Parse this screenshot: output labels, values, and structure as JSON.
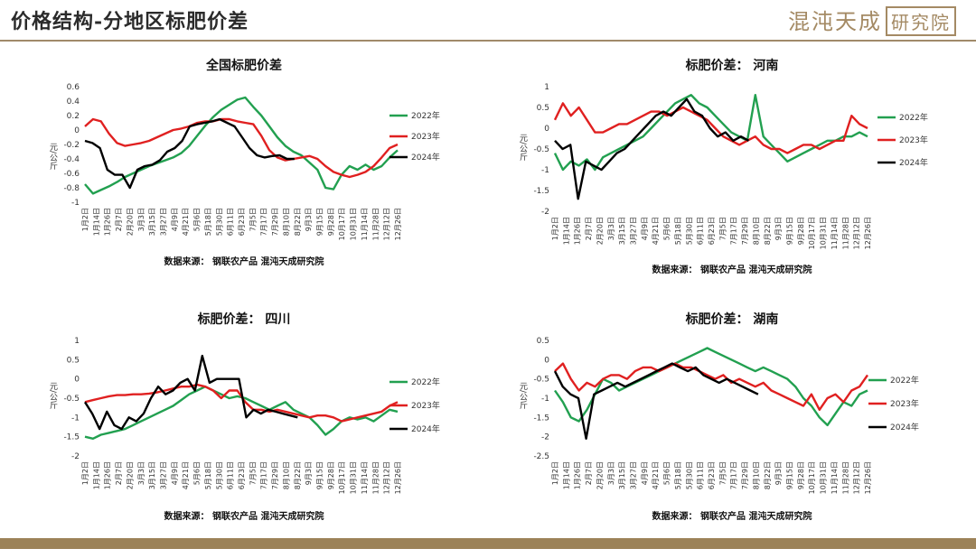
{
  "header": {
    "title": "价格结构-分地区标肥价差",
    "logo_text": "混沌天成",
    "logo_box": "研究院",
    "accent_color": "#a48a64"
  },
  "colors": {
    "s2022": "#22a050",
    "s2023": "#e02020",
    "s2024": "#000000"
  },
  "chart_data": [
    {
      "type": "line",
      "title": "全国标肥价差",
      "ylabel": "元/公斤",
      "source": "数据来源： 钢联农产品 混沌天成研究院",
      "ylim": [
        -1,
        0.6
      ],
      "yticks": [
        0.6,
        0.4,
        0.2,
        0,
        -0.2,
        -0.4,
        -0.6,
        -0.8,
        -1
      ],
      "x_labels": [
        "1月2日",
        "1月14日",
        "1月26日",
        "2月7日",
        "2月20日",
        "3月3日",
        "3月15日",
        "3月27日",
        "4月9日",
        "4月21日",
        "5月6日",
        "5月18日",
        "5月30日",
        "6月11日",
        "6月23日",
        "7月5日",
        "7月17日",
        "7月29日",
        "8月10日",
        "8月22日",
        "9月3日",
        "9月15日",
        "9月28日",
        "10月17日",
        "10月31日",
        "11月14日",
        "11月28日",
        "12月12日",
        "12月26日"
      ],
      "series": [
        {
          "name": "2022年",
          "key": "s2022",
          "span": 1.0,
          "values": [
            -0.75,
            -0.88,
            -0.83,
            -0.78,
            -0.72,
            -0.65,
            -0.6,
            -0.55,
            -0.5,
            -0.46,
            -0.42,
            -0.38,
            -0.32,
            -0.22,
            -0.08,
            0.06,
            0.18,
            0.28,
            0.35,
            0.42,
            0.45,
            0.32,
            0.2,
            0.05,
            -0.1,
            -0.22,
            -0.3,
            -0.35,
            -0.45,
            -0.55,
            -0.8,
            -0.82,
            -0.62,
            -0.5,
            -0.55,
            -0.48,
            -0.55,
            -0.5,
            -0.38,
            -0.28
          ]
        },
        {
          "name": "2023年",
          "key": "s2023",
          "span": 1.0,
          "values": [
            0.05,
            0.15,
            0.12,
            -0.05,
            -0.18,
            -0.22,
            -0.2,
            -0.18,
            -0.15,
            -0.1,
            -0.05,
            0.0,
            0.02,
            0.05,
            0.1,
            0.12,
            0.12,
            0.15,
            0.15,
            0.12,
            0.1,
            0.08,
            -0.08,
            -0.28,
            -0.38,
            -0.42,
            -0.4,
            -0.38,
            -0.36,
            -0.4,
            -0.5,
            -0.58,
            -0.62,
            -0.65,
            -0.62,
            -0.58,
            -0.5,
            -0.38,
            -0.25,
            -0.2
          ]
        },
        {
          "name": "2024年",
          "key": "s2024",
          "span": 0.67,
          "values": [
            -0.15,
            -0.18,
            -0.25,
            -0.55,
            -0.62,
            -0.62,
            -0.8,
            -0.55,
            -0.5,
            -0.48,
            -0.42,
            -0.3,
            -0.25,
            -0.15,
            0.05,
            0.08,
            0.1,
            0.12,
            0.15,
            0.1,
            0.05,
            -0.1,
            -0.25,
            -0.35,
            -0.38,
            -0.36,
            -0.35,
            -0.4,
            -0.4
          ]
        }
      ]
    },
    {
      "type": "line",
      "title": "标肥价差： 河南",
      "ylabel": "元/公斤",
      "source": "数据来源： 钢联农产品 混沌天成研究院",
      "ylim": [
        -2,
        1
      ],
      "yticks": [
        1,
        0.5,
        0,
        -0.5,
        -1,
        -1.5,
        -2
      ],
      "x_labels": [
        "1月2日",
        "1月14日",
        "1月26日",
        "2月7日",
        "2月20日",
        "3月3日",
        "3月15日",
        "3月27日",
        "4月9日",
        "4月21日",
        "5月6日",
        "5月18日",
        "5月30日",
        "6月11日",
        "6月23日",
        "7月5日",
        "7月17日",
        "7月29日",
        "8月10日",
        "8月22日",
        "9月3日",
        "9月15日",
        "9月28日",
        "10月17日",
        "10月31日",
        "11月14日",
        "11月28日",
        "12月12日",
        "12月26日"
      ],
      "series": [
        {
          "name": "2022年",
          "key": "s2022",
          "span": 1.0,
          "values": [
            -0.6,
            -1.0,
            -0.8,
            -0.9,
            -0.75,
            -1.0,
            -0.7,
            -0.6,
            -0.5,
            -0.4,
            -0.3,
            -0.2,
            0.0,
            0.2,
            0.4,
            0.6,
            0.7,
            0.8,
            0.6,
            0.5,
            0.3,
            0.1,
            -0.1,
            -0.2,
            -0.3,
            0.8,
            -0.2,
            -0.4,
            -0.6,
            -0.8,
            -0.7,
            -0.6,
            -0.5,
            -0.4,
            -0.3,
            -0.3,
            -0.2,
            -0.2,
            -0.1,
            -0.2
          ]
        },
        {
          "name": "2023年",
          "key": "s2023",
          "span": 1.0,
          "values": [
            0.2,
            0.6,
            0.3,
            0.5,
            0.2,
            -0.1,
            -0.1,
            0.0,
            0.1,
            0.1,
            0.2,
            0.3,
            0.4,
            0.4,
            0.3,
            0.4,
            0.5,
            0.4,
            0.3,
            0.2,
            0.0,
            -0.2,
            -0.3,
            -0.4,
            -0.3,
            -0.2,
            -0.4,
            -0.5,
            -0.5,
            -0.6,
            -0.5,
            -0.4,
            -0.4,
            -0.5,
            -0.4,
            -0.3,
            -0.3,
            0.3,
            0.1,
            0.0
          ]
        },
        {
          "name": "2024年",
          "key": "s2024",
          "span": 0.62,
          "values": [
            -0.3,
            -0.5,
            -0.4,
            -1.7,
            -0.8,
            -0.9,
            -1.0,
            -0.8,
            -0.6,
            -0.5,
            -0.3,
            -0.1,
            0.1,
            0.3,
            0.4,
            0.3,
            0.5,
            0.7,
            0.4,
            0.3,
            0.0,
            -0.2,
            -0.1,
            -0.3,
            -0.2,
            -0.3
          ]
        }
      ]
    },
    {
      "type": "line",
      "title": "标肥价差： 四川",
      "ylabel": "元/公斤",
      "source": "数据来源： 钢联农产品 混沌天成研究院",
      "ylim": [
        -2,
        1
      ],
      "yticks": [
        1,
        0.5,
        0,
        -0.5,
        -1,
        -1.5,
        -2
      ],
      "x_labels": [
        "1月2日",
        "1月14日",
        "1月26日",
        "2月7日",
        "2月20日",
        "3月3日",
        "3月15日",
        "3月27日",
        "4月9日",
        "4月21日",
        "5月6日",
        "5月18日",
        "5月30日",
        "6月11日",
        "6月23日",
        "7月5日",
        "7月17日",
        "7月29日",
        "8月10日",
        "8月22日",
        "9月3日",
        "9月15日",
        "9月28日",
        "10月17日",
        "10月31日",
        "11月14日",
        "11月28日",
        "12月12日",
        "12月26日"
      ],
      "series": [
        {
          "name": "2022年",
          "key": "s2022",
          "span": 1.0,
          "values": [
            -1.5,
            -1.55,
            -1.45,
            -1.4,
            -1.35,
            -1.3,
            -1.2,
            -1.1,
            -1.0,
            -0.9,
            -0.8,
            -0.7,
            -0.55,
            -0.4,
            -0.3,
            -0.2,
            -0.3,
            -0.4,
            -0.5,
            -0.45,
            -0.5,
            -0.6,
            -0.7,
            -0.8,
            -0.7,
            -0.6,
            -0.8,
            -0.9,
            -1.0,
            -1.2,
            -1.45,
            -1.3,
            -1.1,
            -1.0,
            -1.05,
            -1.0,
            -1.1,
            -0.95,
            -0.8,
            -0.85
          ]
        },
        {
          "name": "2023年",
          "key": "s2023",
          "span": 1.0,
          "values": [
            -0.6,
            -0.55,
            -0.5,
            -0.45,
            -0.42,
            -0.42,
            -0.4,
            -0.4,
            -0.38,
            -0.35,
            -0.3,
            -0.25,
            -0.2,
            -0.2,
            -0.15,
            -0.2,
            -0.3,
            -0.5,
            -0.3,
            -0.3,
            -0.6,
            -0.8,
            -0.8,
            -0.85,
            -0.8,
            -0.85,
            -0.9,
            -0.95,
            -1.0,
            -0.95,
            -0.95,
            -1.0,
            -1.1,
            -1.05,
            -1.0,
            -0.95,
            -0.9,
            -0.85,
            -0.7,
            -0.6
          ]
        },
        {
          "name": "2024年",
          "key": "s2024",
          "span": 0.68,
          "values": [
            -0.6,
            -0.9,
            -1.3,
            -0.85,
            -1.2,
            -1.3,
            -1.0,
            -1.1,
            -0.9,
            -0.5,
            -0.2,
            -0.4,
            -0.3,
            -0.1,
            0.0,
            -0.3,
            0.6,
            -0.1,
            0.0,
            0.0,
            0.0,
            0.0,
            -1.0,
            -0.8,
            -0.9,
            -0.8,
            -0.85,
            -0.9,
            -0.95,
            -1.0
          ]
        }
      ]
    },
    {
      "type": "line",
      "title": "标肥价差： 湖南",
      "ylabel": "元/公斤",
      "source": "数据来源： 钢联农产品 混沌天成研究院",
      "ylim": [
        -2.5,
        0.5
      ],
      "yticks": [
        0.5,
        0,
        -0.5,
        -1,
        -1.5,
        -2,
        -2.5
      ],
      "x_labels": [
        "1月2日",
        "1月14日",
        "1月26日",
        "2月7日",
        "2月20日",
        "3月3日",
        "3月15日",
        "3月27日",
        "4月9日",
        "4月21日",
        "5月6日",
        "5月18日",
        "5月30日",
        "6月11日",
        "6月23日",
        "7月5日",
        "7月17日",
        "7月29日",
        "8月10日",
        "8月22日",
        "9月3日",
        "9月15日",
        "9月28日",
        "10月17日",
        "10月31日",
        "11月14日",
        "11月28日",
        "12月12日",
        "12月26日"
      ],
      "series": [
        {
          "name": "2022年",
          "key": "s2022",
          "span": 1.0,
          "values": [
            -0.8,
            -1.1,
            -1.5,
            -1.6,
            -1.3,
            -0.9,
            -0.5,
            -0.6,
            -0.8,
            -0.7,
            -0.6,
            -0.5,
            -0.4,
            -0.3,
            -0.2,
            -0.1,
            0.0,
            0.1,
            0.2,
            0.3,
            0.2,
            0.1,
            0.0,
            -0.1,
            -0.2,
            -0.3,
            -0.2,
            -0.3,
            -0.4,
            -0.5,
            -0.7,
            -1.0,
            -1.2,
            -1.5,
            -1.7,
            -1.4,
            -1.1,
            -1.2,
            -0.9,
            -0.8
          ]
        },
        {
          "name": "2023年",
          "key": "s2023",
          "span": 1.0,
          "values": [
            -0.3,
            -0.1,
            -0.5,
            -0.8,
            -0.6,
            -0.7,
            -0.5,
            -0.4,
            -0.4,
            -0.5,
            -0.3,
            -0.2,
            -0.2,
            -0.3,
            -0.2,
            -0.1,
            -0.2,
            -0.2,
            -0.3,
            -0.4,
            -0.5,
            -0.4,
            -0.6,
            -0.5,
            -0.6,
            -0.7,
            -0.6,
            -0.8,
            -0.9,
            -1.0,
            -1.1,
            -1.2,
            -0.9,
            -1.3,
            -1.0,
            -0.9,
            -1.1,
            -0.8,
            -0.7,
            -0.4
          ]
        },
        {
          "name": "2024年",
          "key": "s2024",
          "span": 0.65,
          "values": [
            -0.3,
            -0.7,
            -0.9,
            -1.0,
            -2.05,
            -0.9,
            -0.8,
            -0.7,
            -0.6,
            -0.7,
            -0.6,
            -0.5,
            -0.4,
            -0.3,
            -0.2,
            -0.1,
            -0.2,
            -0.3,
            -0.2,
            -0.4,
            -0.5,
            -0.6,
            -0.5,
            -0.6,
            -0.7,
            -0.8,
            -0.9
          ]
        }
      ]
    }
  ]
}
